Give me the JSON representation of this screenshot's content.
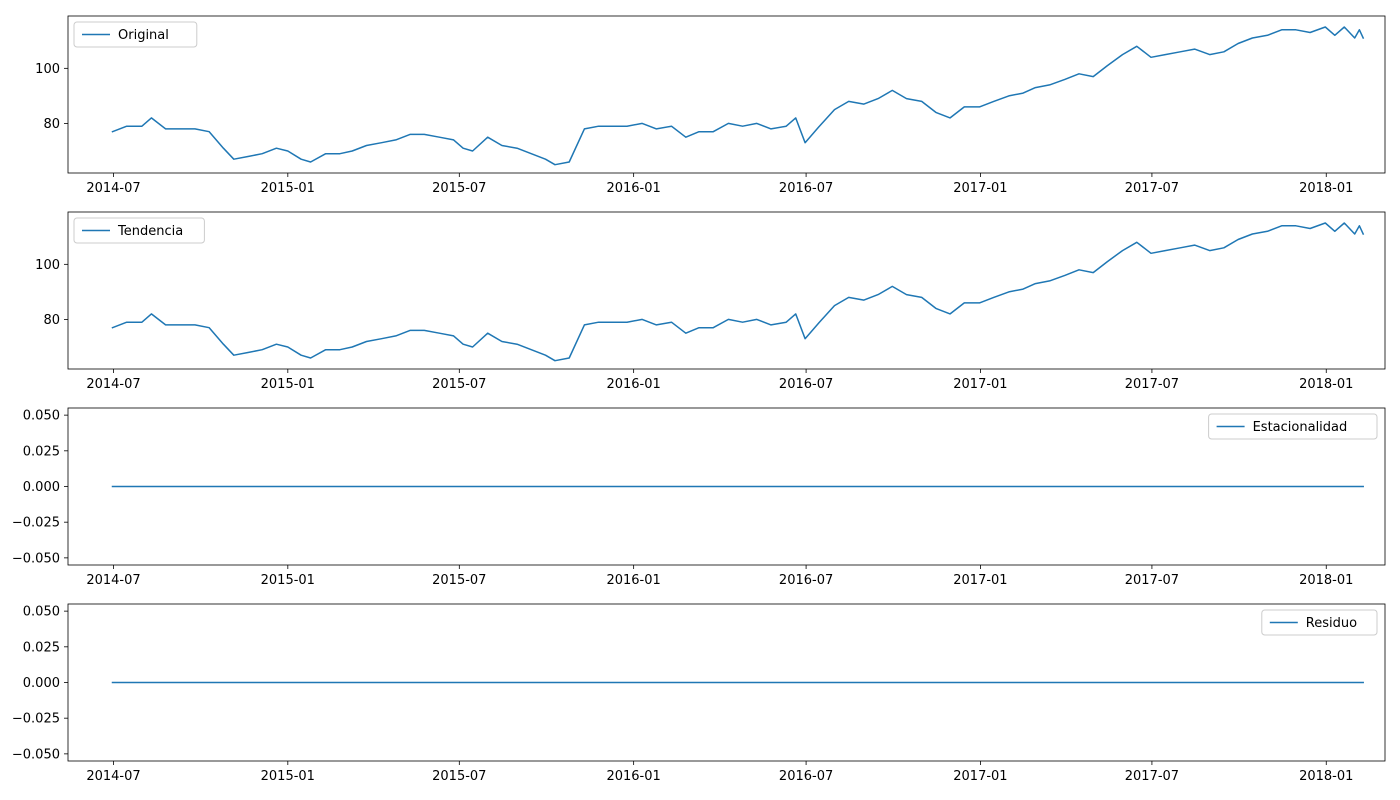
{
  "figure": {
    "background": "#ffffff"
  },
  "chart_data": [
    {
      "type": "line",
      "title": "",
      "xlabel": "",
      "ylabel": "",
      "legend_position": "upper-left",
      "color": "#1f77b4",
      "xlim": [
        "2014-05-14",
        "2018-03-04"
      ],
      "ylim": [
        62,
        119
      ],
      "yticks": [
        80,
        100
      ],
      "ytick_labels": [
        "80",
        "100"
      ],
      "xticks": [
        "2014-07-01",
        "2015-01-01",
        "2015-07-01",
        "2016-01-01",
        "2016-07-01",
        "2017-01-01",
        "2017-07-01",
        "2018-01-01"
      ],
      "xtick_labels": [
        "2014-07",
        "2015-01",
        "2015-07",
        "2016-01",
        "2016-07",
        "2017-01",
        "2017-07",
        "2018-01"
      ],
      "grid": false,
      "series": [
        {
          "name": "Original",
          "x": [
            "2014-06-30",
            "2014-07-15",
            "2014-07-31",
            "2014-08-10",
            "2014-08-25",
            "2014-09-10",
            "2014-09-25",
            "2014-10-10",
            "2014-10-25",
            "2014-11-05",
            "2014-11-20",
            "2014-12-05",
            "2014-12-20",
            "2015-01-01",
            "2015-01-15",
            "2015-01-25",
            "2015-02-10",
            "2015-02-25",
            "2015-03-10",
            "2015-03-25",
            "2015-04-10",
            "2015-04-25",
            "2015-05-10",
            "2015-05-25",
            "2015-06-10",
            "2015-06-25",
            "2015-07-05",
            "2015-07-15",
            "2015-07-31",
            "2015-08-15",
            "2015-08-31",
            "2015-09-15",
            "2015-09-30",
            "2015-10-10",
            "2015-10-25",
            "2015-11-10",
            "2015-11-25",
            "2015-12-10",
            "2015-12-25",
            "2016-01-10",
            "2016-01-25",
            "2016-02-10",
            "2016-02-25",
            "2016-03-10",
            "2016-03-25",
            "2016-04-10",
            "2016-04-25",
            "2016-05-10",
            "2016-05-25",
            "2016-06-10",
            "2016-06-20",
            "2016-06-30",
            "2016-07-15",
            "2016-07-31",
            "2016-08-15",
            "2016-08-31",
            "2016-09-15",
            "2016-09-30",
            "2016-10-15",
            "2016-10-31",
            "2016-11-15",
            "2016-11-30",
            "2016-12-15",
            "2016-12-31",
            "2017-01-15",
            "2017-01-31",
            "2017-02-15",
            "2017-02-28",
            "2017-03-15",
            "2017-03-31",
            "2017-04-15",
            "2017-04-30",
            "2017-05-15",
            "2017-05-31",
            "2017-06-15",
            "2017-06-30",
            "2017-07-15",
            "2017-07-31",
            "2017-08-15",
            "2017-08-31",
            "2017-09-15",
            "2017-09-30",
            "2017-10-15",
            "2017-10-31",
            "2017-11-15",
            "2017-11-30",
            "2017-12-15",
            "2017-12-31",
            "2018-01-10",
            "2018-01-20",
            "2018-01-31",
            "2018-02-05",
            "2018-02-09"
          ],
          "y": [
            77,
            79,
            79,
            82,
            78,
            78,
            78,
            77,
            71,
            67,
            68,
            69,
            71,
            70,
            67,
            66,
            69,
            69,
            70,
            72,
            73,
            74,
            76,
            76,
            75,
            74,
            71,
            70,
            75,
            72,
            71,
            69,
            67,
            65,
            66,
            78,
            79,
            79,
            79,
            80,
            78,
            79,
            75,
            77,
            77,
            80,
            79,
            80,
            78,
            79,
            82,
            73,
            79,
            85,
            88,
            87,
            89,
            92,
            89,
            88,
            84,
            82,
            86,
            86,
            88,
            90,
            91,
            93,
            94,
            96,
            98,
            97,
            101,
            105,
            108,
            104,
            105,
            106,
            107,
            105,
            106,
            109,
            111,
            112,
            114,
            114,
            113,
            115,
            112,
            115,
            111,
            114,
            111
          ]
        }
      ]
    },
    {
      "type": "line",
      "title": "",
      "xlabel": "",
      "ylabel": "",
      "legend_position": "upper-left",
      "color": "#1f77b4",
      "xlim": [
        "2014-05-14",
        "2018-03-04"
      ],
      "ylim": [
        62,
        119
      ],
      "yticks": [
        80,
        100
      ],
      "ytick_labels": [
        "80",
        "100"
      ],
      "xticks": [
        "2014-07-01",
        "2015-01-01",
        "2015-07-01",
        "2016-01-01",
        "2016-07-01",
        "2017-01-01",
        "2017-07-01",
        "2018-01-01"
      ],
      "xtick_labels": [
        "2014-07",
        "2015-01",
        "2015-07",
        "2016-01",
        "2016-07",
        "2017-01",
        "2017-07",
        "2018-01"
      ],
      "grid": false,
      "series": [
        {
          "name": "Tendencia",
          "x": [
            "2014-06-30",
            "2014-07-15",
            "2014-07-31",
            "2014-08-10",
            "2014-08-25",
            "2014-09-10",
            "2014-09-25",
            "2014-10-10",
            "2014-10-25",
            "2014-11-05",
            "2014-11-20",
            "2014-12-05",
            "2014-12-20",
            "2015-01-01",
            "2015-01-15",
            "2015-01-25",
            "2015-02-10",
            "2015-02-25",
            "2015-03-10",
            "2015-03-25",
            "2015-04-10",
            "2015-04-25",
            "2015-05-10",
            "2015-05-25",
            "2015-06-10",
            "2015-06-25",
            "2015-07-05",
            "2015-07-15",
            "2015-07-31",
            "2015-08-15",
            "2015-08-31",
            "2015-09-15",
            "2015-09-30",
            "2015-10-10",
            "2015-10-25",
            "2015-11-10",
            "2015-11-25",
            "2015-12-10",
            "2015-12-25",
            "2016-01-10",
            "2016-01-25",
            "2016-02-10",
            "2016-02-25",
            "2016-03-10",
            "2016-03-25",
            "2016-04-10",
            "2016-04-25",
            "2016-05-10",
            "2016-05-25",
            "2016-06-10",
            "2016-06-20",
            "2016-06-30",
            "2016-07-15",
            "2016-07-31",
            "2016-08-15",
            "2016-08-31",
            "2016-09-15",
            "2016-09-30",
            "2016-10-15",
            "2016-10-31",
            "2016-11-15",
            "2016-11-30",
            "2016-12-15",
            "2016-12-31",
            "2017-01-15",
            "2017-01-31",
            "2017-02-15",
            "2017-02-28",
            "2017-03-15",
            "2017-03-31",
            "2017-04-15",
            "2017-04-30",
            "2017-05-15",
            "2017-05-31",
            "2017-06-15",
            "2017-06-30",
            "2017-07-15",
            "2017-07-31",
            "2017-08-15",
            "2017-08-31",
            "2017-09-15",
            "2017-09-30",
            "2017-10-15",
            "2017-10-31",
            "2017-11-15",
            "2017-11-30",
            "2017-12-15",
            "2017-12-31",
            "2018-01-10",
            "2018-01-20",
            "2018-01-31",
            "2018-02-05",
            "2018-02-09"
          ],
          "y": [
            77,
            79,
            79,
            82,
            78,
            78,
            78,
            77,
            71,
            67,
            68,
            69,
            71,
            70,
            67,
            66,
            69,
            69,
            70,
            72,
            73,
            74,
            76,
            76,
            75,
            74,
            71,
            70,
            75,
            72,
            71,
            69,
            67,
            65,
            66,
            78,
            79,
            79,
            79,
            80,
            78,
            79,
            75,
            77,
            77,
            80,
            79,
            80,
            78,
            79,
            82,
            73,
            79,
            85,
            88,
            87,
            89,
            92,
            89,
            88,
            84,
            82,
            86,
            86,
            88,
            90,
            91,
            93,
            94,
            96,
            98,
            97,
            101,
            105,
            108,
            104,
            105,
            106,
            107,
            105,
            106,
            109,
            111,
            112,
            114,
            114,
            113,
            115,
            112,
            115,
            111,
            114,
            111
          ]
        }
      ]
    },
    {
      "type": "line",
      "title": "",
      "xlabel": "",
      "ylabel": "",
      "legend_position": "upper-right",
      "color": "#1f77b4",
      "xlim": [
        "2014-05-14",
        "2018-03-04"
      ],
      "ylim": [
        -0.055,
        0.055
      ],
      "yticks": [
        0.05,
        0.025,
        0,
        -0.025,
        -0.05
      ],
      "ytick_labels": [
        "0.050",
        "0.025",
        "0.000",
        "−0.025",
        "−0.050"
      ],
      "xticks": [
        "2014-07-01",
        "2015-01-01",
        "2015-07-01",
        "2016-01-01",
        "2016-07-01",
        "2017-01-01",
        "2017-07-01",
        "2018-01-01"
      ],
      "xtick_labels": [
        "2014-07",
        "2015-01",
        "2015-07",
        "2016-01",
        "2016-07",
        "2017-01",
        "2017-07",
        "2018-01"
      ],
      "grid": false,
      "series": [
        {
          "name": "Estacionalidad",
          "x": [
            "2014-06-30",
            "2018-02-09"
          ],
          "y": [
            0,
            0
          ]
        }
      ]
    },
    {
      "type": "line",
      "title": "",
      "xlabel": "",
      "ylabel": "",
      "legend_position": "upper-right",
      "color": "#1f77b4",
      "xlim": [
        "2014-05-14",
        "2018-03-04"
      ],
      "ylim": [
        -0.055,
        0.055
      ],
      "yticks": [
        0.05,
        0.025,
        0,
        -0.025,
        -0.05
      ],
      "ytick_labels": [
        "0.050",
        "0.025",
        "0.000",
        "−0.025",
        "−0.050"
      ],
      "xticks": [
        "2014-07-01",
        "2015-01-01",
        "2015-07-01",
        "2016-01-01",
        "2016-07-01",
        "2017-01-01",
        "2017-07-01",
        "2018-01-01"
      ],
      "xtick_labels": [
        "2014-07",
        "2015-01",
        "2015-07",
        "2016-01",
        "2016-07",
        "2017-01",
        "2017-07",
        "2018-01"
      ],
      "grid": false,
      "series": [
        {
          "name": "Residuo",
          "x": [
            "2014-06-30",
            "2018-02-09"
          ],
          "y": [
            0,
            0
          ]
        }
      ]
    }
  ]
}
